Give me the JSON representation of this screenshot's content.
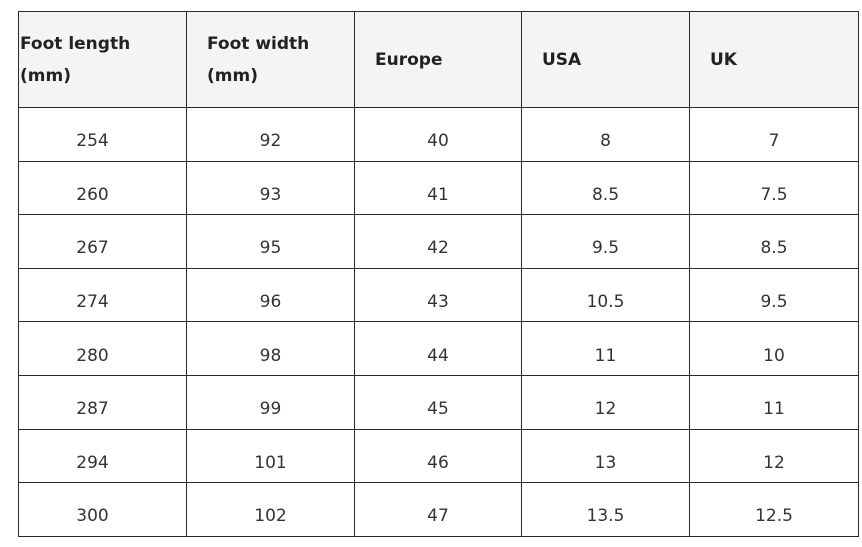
{
  "table": {
    "header": [
      "Foot length (mm)",
      "Foot width (mm)",
      "Europe",
      "USA",
      "UK"
    ],
    "rows": [
      [
        "254",
        "92",
        "40",
        "8",
        "7"
      ],
      [
        "260",
        "93",
        "41",
        "8.5",
        "7.5"
      ],
      [
        "267",
        "95",
        "42",
        "9.5",
        "8.5"
      ],
      [
        "274",
        "96",
        "43",
        "10.5",
        "9.5"
      ],
      [
        "280",
        "98",
        "44",
        "11",
        "10"
      ],
      [
        "287",
        "99",
        "45",
        "12",
        "11"
      ],
      [
        "294",
        "101",
        "46",
        "13",
        "12"
      ],
      [
        "300",
        "102",
        "47",
        "13.5",
        "12.5"
      ]
    ]
  }
}
